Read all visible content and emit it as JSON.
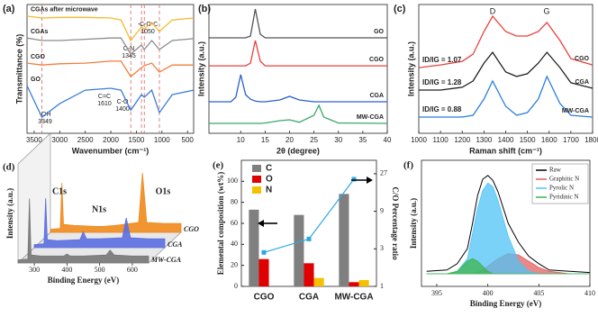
{
  "chart_data": [
    {
      "type": "line",
      "label": "(a)",
      "x_label": "Wavenumber (cm⁻¹)",
      "y_label": "Transmittance (%)",
      "x": [
        3640,
        3349,
        3000,
        2500,
        2000,
        1800,
        1610,
        1400,
        1345,
        1200,
        1050,
        800,
        380
      ],
      "xlim": [
        3640,
        380
      ],
      "xticks": [
        3500,
        3000,
        2500,
        2000,
        1500,
        1000,
        500
      ],
      "ylim": [
        0,
        10
      ],
      "series": [
        {
          "name": "CGAs after microwave",
          "color": "#f5b82e",
          "values": [
            9.1,
            8.95,
            9.0,
            9.0,
            8.95,
            8.8,
            7.2,
            8.25,
            8.1,
            8.6,
            7.9,
            8.8,
            8.95
          ]
        },
        {
          "name": "CGAs",
          "color": "#8c8c8c",
          "values": [
            7.4,
            7.2,
            7.2,
            7.3,
            7.4,
            7.4,
            6.15,
            6.85,
            6.5,
            7.2,
            6.5,
            7.2,
            7.35
          ]
        },
        {
          "name": "CGO",
          "color": "#f07f3c",
          "values": [
            5.45,
            5.3,
            5.4,
            5.45,
            5.6,
            5.6,
            4.4,
            5.1,
            5.25,
            5.45,
            4.75,
            5.3,
            5.3
          ]
        },
        {
          "name": "GO",
          "color": "#3b7dd8",
          "values": [
            3.7,
            1.25,
            2.3,
            3.35,
            3.5,
            3.35,
            1.8,
            3.0,
            2.8,
            3.35,
            1.6,
            3.0,
            3.35
          ]
        }
      ],
      "annotations": [
        {
          "text": "-OH",
          "value": 3349
        },
        {
          "text": "C=C",
          "value": 1610
        },
        {
          "text": "C-O",
          "value": 1400
        },
        {
          "text": "C-N",
          "value": 1345
        },
        {
          "text": "-C-O-C",
          "value": 1050
        }
      ],
      "guide_color": "#e06060"
    },
    {
      "type": "line",
      "label": "(b)",
      "x_label": "2θ (degree)",
      "y_label": "Intensity (a.u.)",
      "x": [
        3.5,
        8,
        9,
        10,
        11,
        12,
        13,
        14,
        15,
        18,
        20,
        22,
        25,
        26,
        27,
        30,
        40
      ],
      "xlim": [
        3.5,
        40
      ],
      "xticks": [
        10,
        15,
        20,
        25,
        30,
        35,
        40
      ],
      "ylim": [
        0,
        10
      ],
      "series": [
        {
          "name": "GO",
          "color": "#555555",
          "values": [
            7.41,
            7.41,
            7.41,
            7.41,
            7.41,
            7.55,
            9.65,
            7.69,
            7.41,
            7.41,
            7.41,
            7.41,
            7.41,
            7.41,
            7.41,
            7.41,
            7.41
          ]
        },
        {
          "name": "CGO",
          "color": "#e8413c",
          "values": [
            5.24,
            5.24,
            5.24,
            5.24,
            5.24,
            5.45,
            7.2,
            5.6,
            5.24,
            5.24,
            5.24,
            5.24,
            5.24,
            5.24,
            5.24,
            5.24,
            5.24
          ]
        },
        {
          "name": "CGA",
          "color": "#2a5fcf",
          "values": [
            2.45,
            2.45,
            2.8,
            4.55,
            3.0,
            2.65,
            2.5,
            2.45,
            2.45,
            2.59,
            2.87,
            2.59,
            2.45,
            2.45,
            2.45,
            2.45,
            2.45
          ]
        },
        {
          "name": "MW-CGA",
          "color": "#3aa86b",
          "values": [
            0.77,
            0.77,
            0.77,
            0.77,
            0.77,
            0.77,
            0.77,
            0.77,
            0.8,
            0.98,
            1.05,
            0.85,
            1.4,
            2.17,
            1.26,
            0.8,
            0.77
          ]
        }
      ]
    },
    {
      "type": "line",
      "label": "(c)",
      "x_label": "Raman shift (cm⁻¹)",
      "y_label": "Intensity (a.u.)",
      "x": [
        1000,
        1100,
        1200,
        1250,
        1300,
        1340,
        1400,
        1450,
        1500,
        1550,
        1590,
        1650,
        1700,
        1800
      ],
      "xlim": [
        1000,
        1800
      ],
      "xticks": [
        1000,
        1100,
        1200,
        1300,
        1400,
        1500,
        1600,
        1700,
        1800
      ],
      "ylim": [
        0,
        10
      ],
      "series": [
        {
          "name": "CGO",
          "color": "#e8413c",
          "ratio_text": "ID/IG = 1.07",
          "values": [
            5.1,
            5.31,
            5.59,
            6.15,
            7.9,
            9.09,
            7.9,
            7.55,
            7.55,
            7.9,
            8.6,
            7.2,
            5.8,
            5.31
          ]
        },
        {
          "name": "CGA",
          "color": "#222222",
          "ratio_text": "ID/IG = 1.28",
          "values": [
            3.36,
            3.36,
            3.57,
            4.06,
            5.45,
            6.29,
            4.76,
            4.41,
            4.62,
            5.45,
            6.29,
            5.1,
            3.92,
            3.5
          ]
        },
        {
          "name": "MW-CGA",
          "color": "#2a7de1",
          "ratio_text": "ID/IG = 0.88",
          "values": [
            1.26,
            1.26,
            1.26,
            1.4,
            2.66,
            4.06,
            2.1,
            1.4,
            1.61,
            2.66,
            4.41,
            2.31,
            1.4,
            1.26
          ]
        }
      ],
      "annotations": [
        {
          "text": "D"
        },
        {
          "text": "G"
        }
      ]
    },
    {
      "type": "waterfall",
      "label": "(d)",
      "x_label": "Binding Energy (eV)",
      "y_label": "Intensity (a.u.)",
      "x": [
        250,
        280,
        285,
        290,
        320,
        390,
        400,
        410,
        450,
        520,
        532,
        545,
        600,
        650
      ],
      "xlim": [
        250,
        650
      ],
      "xticks": [
        300,
        400,
        500,
        600
      ],
      "ylim": [
        0,
        10
      ],
      "series": [
        {
          "name": "CGO",
          "color": "#f08a1c",
          "values": [
            0.3,
            0.4,
            5,
            0.8,
            0.7,
            0.6,
            0.6,
            0.6,
            0.7,
            1.0,
            6,
            1.0,
            0.9,
            0.9
          ]
        },
        {
          "name": "CGA",
          "color": "#5b6ee0",
          "values": [
            0.3,
            0.4,
            5,
            0.8,
            0.7,
            0.8,
            1.6,
            0.9,
            0.9,
            1.0,
            3,
            1.0,
            0.9,
            0.9
          ]
        },
        {
          "name": "MW-CGA",
          "color": "#777777",
          "values": [
            0.3,
            0.4,
            6.5,
            0.8,
            0.7,
            0.7,
            0.9,
            0.7,
            0.7,
            0.8,
            1.3,
            0.8,
            0.7,
            0.7
          ]
        }
      ],
      "annotations": [
        {
          "text": "C1s"
        },
        {
          "text": "O1s"
        },
        {
          "text": "N1s"
        }
      ]
    },
    {
      "type": "bar",
      "label": "(e)",
      "y_label": "Elemental composition (wt%)",
      "y2_label": "C/O Percentage ratio",
      "categories": [
        "CGO",
        "CGA",
        "MW-CGA"
      ],
      "ylim": [
        0,
        120
      ],
      "yticks": [
        0,
        20,
        40,
        60,
        80,
        100
      ],
      "y2lim": [
        1,
        40
      ],
      "y2ticks": [
        1,
        3,
        9,
        27
      ],
      "y2scale": "log",
      "series": [
        {
          "name": "C",
          "color": "#7f7f7f",
          "values": [
            73,
            68,
            88
          ]
        },
        {
          "name": "O",
          "color": "#e00000",
          "values": [
            26,
            22,
            4
          ]
        },
        {
          "name": "N",
          "color": "#f5c000",
          "values": [
            0,
            8,
            6
          ]
        },
        {
          "axis": "y2",
          "color": "#2aa8e8",
          "values": [
            2.7,
            4.0,
            23
          ]
        }
      ]
    },
    {
      "type": "area",
      "label": "(f)",
      "x_label": "Binding Energy (eV)",
      "y_label": "Intensity (a.u.)",
      "x": [
        394,
        396,
        397,
        398,
        398.5,
        399,
        399.5,
        400,
        400.5,
        401,
        402,
        403,
        404,
        405,
        406,
        408,
        410
      ],
      "xlim": [
        393.5,
        410
      ],
      "xticks": [
        395,
        400,
        405,
        410
      ],
      "ylim": [
        0,
        10
      ],
      "series": [
        {
          "name": "Raw",
          "color": "#000000",
          "values": [
            1.2,
            1.3,
            1.8,
            3.0,
            5.0,
            7.2,
            8.5,
            8.8,
            8.4,
            7.5,
            5.0,
            3.5,
            2.4,
            1.8,
            1.3,
            1.2,
            1.1
          ]
        },
        {
          "name": "Graphitic N",
          "color": "#e06060",
          "filled": true,
          "values": [
            1,
            1,
            1,
            1,
            1,
            1.1,
            1.3,
            1.6,
            1.9,
            2.2,
            2.6,
            2.5,
            2.0,
            1.5,
            1.2,
            1,
            1
          ]
        },
        {
          "name": "Pyrolic N",
          "color": "#4fc3f7",
          "filled": true,
          "values": [
            1,
            1,
            1.2,
            2.2,
            4.2,
            6.2,
            7.6,
            8.2,
            7.9,
            6.8,
            4.0,
            2.0,
            1.2,
            1,
            1,
            1,
            1
          ]
        },
        {
          "name": "Pyridinic N",
          "color": "#3cb44b",
          "filled": true,
          "values": [
            1,
            1,
            1.2,
            2.0,
            2.2,
            2.0,
            1.6,
            1.2,
            1,
            1,
            1,
            1,
            1,
            1,
            1,
            1,
            1
          ]
        }
      ]
    }
  ]
}
